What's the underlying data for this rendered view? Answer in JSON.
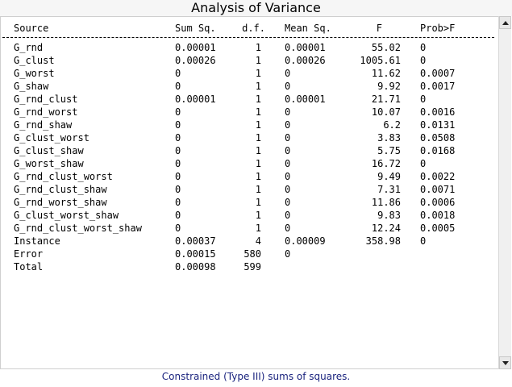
{
  "title": "Analysis of Variance",
  "columns": {
    "source": "Source",
    "sum_sq": "Sum Sq.",
    "df": "d.f.",
    "mean_sq": "Mean Sq.",
    "f": "F",
    "prob": "Prob>F"
  },
  "rows": [
    {
      "source": "G_rnd",
      "sum_sq": "0.00001",
      "df": "1",
      "mean_sq": "0.00001",
      "f": "55.02",
      "prob": "0"
    },
    {
      "source": "G_clust",
      "sum_sq": "0.00026",
      "df": "1",
      "mean_sq": "0.00026",
      "f": "1005.61",
      "prob": "0"
    },
    {
      "source": "G_worst",
      "sum_sq": "0",
      "df": "1",
      "mean_sq": "0",
      "f": "11.62",
      "prob": "0.0007"
    },
    {
      "source": "G_shaw",
      "sum_sq": "0",
      "df": "1",
      "mean_sq": "0",
      "f": "9.92",
      "prob": "0.0017"
    },
    {
      "source": "G_rnd_clust",
      "sum_sq": "0.00001",
      "df": "1",
      "mean_sq": "0.00001",
      "f": "21.71",
      "prob": "0"
    },
    {
      "source": "G_rnd_worst",
      "sum_sq": "0",
      "df": "1",
      "mean_sq": "0",
      "f": "10.07",
      "prob": "0.0016"
    },
    {
      "source": "G_rnd_shaw",
      "sum_sq": "0",
      "df": "1",
      "mean_sq": "0",
      "f": "6.2",
      "prob": "0.0131"
    },
    {
      "source": "G_clust_worst",
      "sum_sq": "0",
      "df": "1",
      "mean_sq": "0",
      "f": "3.83",
      "prob": "0.0508"
    },
    {
      "source": "G_clust_shaw",
      "sum_sq": "0",
      "df": "1",
      "mean_sq": "0",
      "f": "5.75",
      "prob": "0.0168"
    },
    {
      "source": "G_worst_shaw",
      "sum_sq": "0",
      "df": "1",
      "mean_sq": "0",
      "f": "16.72",
      "prob": "0"
    },
    {
      "source": "G_rnd_clust_worst",
      "sum_sq": "0",
      "df": "1",
      "mean_sq": "0",
      "f": "9.49",
      "prob": "0.0022"
    },
    {
      "source": "G_rnd_clust_shaw",
      "sum_sq": "0",
      "df": "1",
      "mean_sq": "0",
      "f": "7.31",
      "prob": "0.0071"
    },
    {
      "source": "G_rnd_worst_shaw",
      "sum_sq": "0",
      "df": "1",
      "mean_sq": "0",
      "f": "11.86",
      "prob": "0.0006"
    },
    {
      "source": "G_clust_worst_shaw",
      "sum_sq": "0",
      "df": "1",
      "mean_sq": "0",
      "f": "9.83",
      "prob": "0.0018"
    },
    {
      "source": "G_rnd_clust_worst_shaw",
      "sum_sq": "0",
      "df": "1",
      "mean_sq": "0",
      "f": "12.24",
      "prob": "0.0005"
    },
    {
      "source": "Instance",
      "sum_sq": "0.00037",
      "df": "4",
      "mean_sq": "0.00009",
      "f": "358.98",
      "prob": "0"
    },
    {
      "source": "Error",
      "sum_sq": "0.00015",
      "df": "580",
      "mean_sq": "0",
      "f": "",
      "prob": ""
    },
    {
      "source": "Total",
      "sum_sq": "0.00098",
      "df": "599",
      "mean_sq": "",
      "f": "",
      "prob": ""
    }
  ],
  "footer": "Constrained (Type III) sums of squares.",
  "scrollbar": {
    "up_icon": "arrow-up-icon",
    "down_icon": "arrow-down-icon"
  }
}
